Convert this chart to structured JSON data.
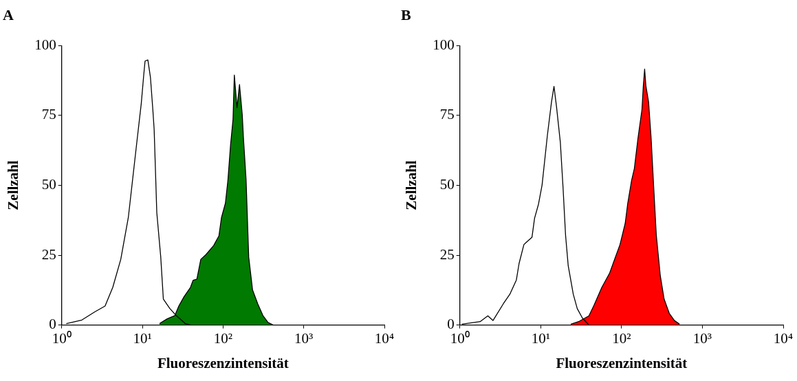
{
  "chart_data": [
    {
      "type": "line",
      "title": "A",
      "xlabel": "Fluoreszenzintensität",
      "ylabel": "Zellzahl",
      "log": "x",
      "xlim": [
        1,
        10000
      ],
      "xticks": [
        {
          "value": 1,
          "label": "10⁰"
        },
        {
          "value": 10,
          "label": "10¹"
        },
        {
          "value": 100,
          "label": "10²"
        },
        {
          "value": 1000,
          "label": "10³"
        },
        {
          "value": 10000,
          "label": "10⁴"
        }
      ],
      "ylim": [
        0,
        100
      ],
      "yticks": [
        0,
        25,
        50,
        75,
        100
      ],
      "series": [
        {
          "type": "area",
          "color": "#007a00",
          "x": [
            16.3,
            20.3,
            25.3,
            28.3,
            32.8,
            39.5,
            42.5,
            47.4,
            53,
            61.4,
            76.7,
            88.9,
            95.7,
            107,
            115,
            124,
            133,
            138,
            149,
            160,
            173,
            179,
            193,
            208,
            232,
            269,
            312,
            361,
            419
          ],
          "values": [
            0.5,
            2.2,
            3.4,
            6.8,
            10.1,
            13.5,
            16,
            16.4,
            23.5,
            25.2,
            28.5,
            31.9,
            38.5,
            43.6,
            51.9,
            64.5,
            73.6,
            89.5,
            77.8,
            86.1,
            75.3,
            66.9,
            51.9,
            24.3,
            12.6,
            7.6,
            3.4,
            0.9,
            0
          ]
        },
        {
          "type": "line",
          "color": "#000000",
          "x": [
            1.14,
            1.78,
            2.57,
            3.45,
            4.3,
            5.4,
            6.7,
            8.4,
            9.7,
            10.4,
            10.8,
            11.7,
            12.6,
            13.5,
            14,
            15.1,
            16.9,
            18.2,
            21.9,
            26.3,
            34,
            39.5
          ],
          "values": [
            0.5,
            1.8,
            4.7,
            6.8,
            13.5,
            23.5,
            38.5,
            63.6,
            79.4,
            89.5,
            94.5,
            94.9,
            88.6,
            76.9,
            70,
            40.2,
            24.3,
            9.3,
            5.9,
            3.4,
            0.5,
            0
          ]
        }
      ]
    },
    {
      "type": "line",
      "title": "B",
      "xlabel": "Fluoreszenzintensität",
      "ylabel": "Zellzahl",
      "log": "x",
      "xlim": [
        1,
        10000
      ],
      "xticks": [
        {
          "value": 1,
          "label": "10⁰"
        },
        {
          "value": 10,
          "label": "10¹"
        },
        {
          "value": 100,
          "label": "10²"
        },
        {
          "value": 1000,
          "label": "10³"
        },
        {
          "value": 10000,
          "label": "10⁴"
        }
      ],
      "ylim": [
        0,
        100
      ],
      "yticks": [
        0,
        25,
        50,
        75,
        100
      ],
      "series": [
        {
          "type": "area",
          "color": "#ff0000",
          "x": [
            23.6,
            29.4,
            39.5,
            45.7,
            57.1,
            71.3,
            82.6,
            95.7,
            111,
            119,
            133,
            144,
            160,
            179,
            186,
            193,
            200,
            216,
            232,
            249,
            269,
            301,
            336,
            389,
            451,
            522
          ],
          "values": [
            0.3,
            1.2,
            3.3,
            7.1,
            13.5,
            18.6,
            23.7,
            28.8,
            36.4,
            43.3,
            51.7,
            56,
            67,
            77.2,
            85.7,
            91.6,
            85.7,
            79.8,
            67,
            50.1,
            32.2,
            17.8,
            9.3,
            4.2,
            1.6,
            0.3
          ]
        },
        {
          "type": "line",
          "color": "#000000",
          "x": [
            1.06,
            1.78,
            2.22,
            2.57,
            3.45,
            4.15,
            5,
            5.4,
            6.2,
            7.8,
            8.4,
            9.4,
            10.4,
            12.1,
            13.6,
            14.6,
            15.7,
            17.5,
            18.9,
            20.3,
            21.9,
            25.3,
            28.3,
            32.8,
            39.5
          ],
          "values": [
            0.3,
            1.2,
            3.3,
            1.6,
            7.6,
            11,
            16.1,
            22,
            28.8,
            31.4,
            38.2,
            43.3,
            50.1,
            67.9,
            79.8,
            85.4,
            78.1,
            65.4,
            49.2,
            32.2,
            21.2,
            11,
            5.9,
            2.5,
            0
          ]
        }
      ]
    }
  ]
}
